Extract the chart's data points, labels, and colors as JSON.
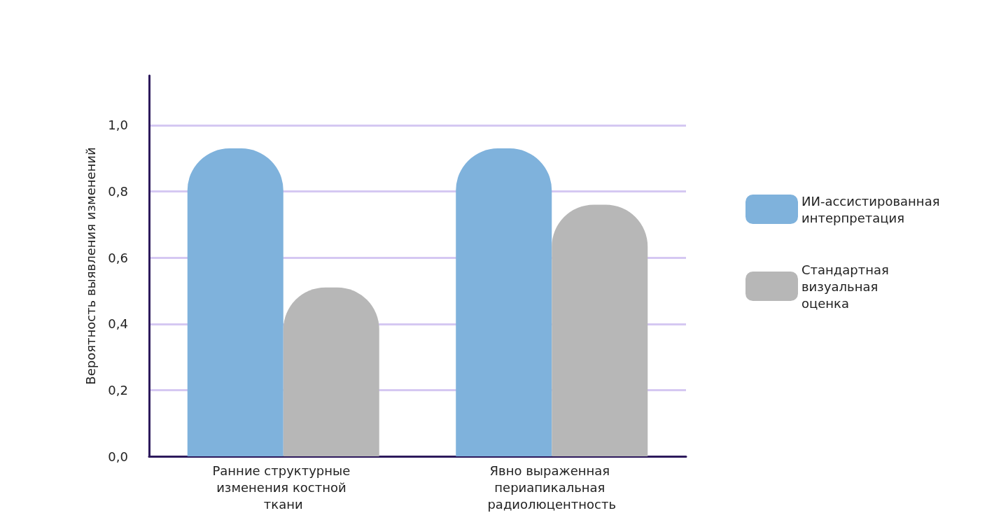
{
  "chart_data": {
    "type": "bar",
    "ylabel": "Вероятность выявления изменений",
    "categories": [
      "Ранние структурные изменения костной ткани",
      "Явно выраженная периапикальная радиолюцентность"
    ],
    "series": [
      {
        "name": "ИИ-ассистированная интерпретация",
        "color": "#7fb2dc",
        "values": [
          0.93,
          0.93
        ]
      },
      {
        "name": "Стандартная визуальная оценка",
        "color": "#b7b7b7",
        "values": [
          0.51,
          0.76
        ]
      }
    ],
    "ylim": [
      0,
      1.15
    ],
    "yticks": [
      {
        "value": 0,
        "label": "0,0"
      },
      {
        "value": 0.2,
        "label": "0,2"
      },
      {
        "value": 0.4,
        "label": "0,4"
      },
      {
        "value": 0.6,
        "label": "0,6"
      },
      {
        "value": 0.8,
        "label": "0,8"
      },
      {
        "value": 1,
        "label": "1,0"
      }
    ],
    "grid": "y",
    "legend": "right"
  }
}
